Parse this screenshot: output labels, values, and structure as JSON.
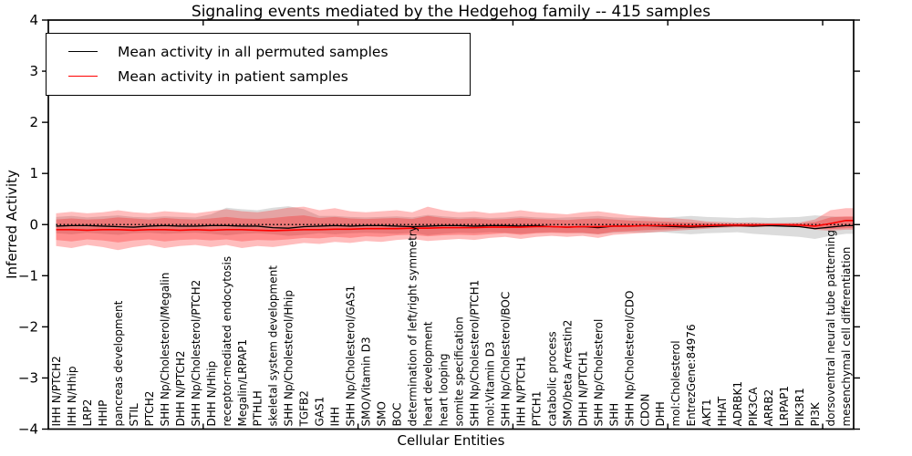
{
  "chart_data": {
    "type": "line",
    "title": "Signaling events mediated by the Hedgehog family -- 415 samples",
    "xlabel": "Cellular Entities",
    "ylabel": "Inferred Activity",
    "ylim": [
      -4,
      4
    ],
    "xlim": [
      0,
      52
    ],
    "yticks": [
      4,
      3,
      2,
      1,
      0,
      -1,
      -2,
      -3,
      -4
    ],
    "ytick_labels": [
      "4",
      "3",
      "2",
      "1",
      "0",
      "−1",
      "−2",
      "−3",
      "−4"
    ],
    "xticks": [
      10,
      20,
      30,
      40,
      50
    ],
    "grid": false,
    "legend_position": "upper left",
    "categories": [
      "IHH N/PTCH2",
      "IHH N/Hhip",
      "LRP2",
      "HHIP",
      "pancreas development",
      "STIL",
      "PTCH2",
      "SHH Np/Cholesterol/Megalin",
      "DHH N/PTCH2",
      "SHH Np/Cholesterol/PTCH2",
      "DHH N/Hhip",
      "receptor-mediated endocytosis",
      "Megalin/LRPAP1",
      "PTHLH",
      "skeletal system development",
      "SHH Np/Cholesterol/Hhip",
      "TGFB2",
      "GAS1",
      "IHH",
      "SHH Np/Cholesterol/GAS1",
      "SMO/Vitamin D3",
      "SMO",
      "BOC",
      "determination of left/right symmetry",
      "heart development",
      "heart looping",
      "somite specification",
      "SHH Np/Cholesterol/PTCH1",
      "mol:Vitamin D3",
      "SHH Np/Cholesterol/BOC",
      "IHH N/PTCH1",
      "PTCH1",
      "catabolic process",
      "SMO/beta Arrestin2",
      "DHH N/PTCH1",
      "SHH Np/Cholesterol",
      "SHH",
      "SHH Np/Cholesterol/CDO",
      "CDON",
      "DHH",
      "mol:Cholesterol",
      "EntrezGene:84976",
      "AKT1",
      "HHAT",
      "ADRBK1",
      "PIK3CA",
      "ARRB2",
      "LRPAP1",
      "PIK3R1",
      "PI3K",
      "dorsoventral neural tube patterning",
      "mesenchymal cell differentiation"
    ],
    "reference_line": {
      "y": 0,
      "style": "dotted",
      "color": "#000000"
    },
    "series": [
      {
        "name": "Mean activity in all permuted samples",
        "color": "#000000",
        "style": "solid",
        "values": [
          -0.03,
          -0.02,
          -0.02,
          -0.03,
          -0.04,
          -0.05,
          -0.03,
          -0.02,
          -0.03,
          -0.03,
          -0.02,
          -0.02,
          -0.03,
          -0.03,
          -0.06,
          -0.07,
          -0.04,
          -0.03,
          -0.02,
          -0.03,
          -0.02,
          -0.02,
          -0.03,
          -0.04,
          -0.03,
          -0.02,
          -0.02,
          -0.03,
          -0.02,
          -0.02,
          -0.03,
          -0.02,
          -0.04,
          -0.05,
          -0.04,
          -0.06,
          -0.03,
          -0.03,
          -0.02,
          -0.03,
          -0.04,
          -0.05,
          -0.04,
          -0.03,
          -0.02,
          -0.03,
          -0.02,
          -0.03,
          -0.04,
          -0.08,
          -0.05,
          -0.02
        ]
      },
      {
        "name": "Mean activity in patient samples",
        "color": "#ff0000",
        "style": "solid",
        "values": [
          -0.1,
          -0.1,
          -0.11,
          -0.1,
          -0.1,
          -0.11,
          -0.1,
          -0.1,
          -0.11,
          -0.1,
          -0.11,
          -0.1,
          -0.1,
          -0.11,
          -0.12,
          -0.11,
          -0.1,
          -0.1,
          -0.09,
          -0.09,
          -0.08,
          -0.08,
          -0.08,
          -0.07,
          -0.07,
          -0.06,
          -0.06,
          -0.06,
          -0.05,
          -0.05,
          -0.05,
          -0.04,
          -0.04,
          -0.05,
          -0.04,
          -0.04,
          -0.03,
          -0.03,
          -0.02,
          -0.02,
          -0.02,
          -0.03,
          -0.02,
          -0.01,
          -0.01,
          -0.01,
          0.0,
          0.0,
          -0.01,
          -0.03,
          0.02,
          0.08
        ]
      }
    ],
    "bands": [
      {
        "name": "permuted samples range",
        "color": "rgba(128,128,128,0.28)",
        "upper": [
          0.15,
          0.17,
          0.14,
          0.16,
          0.18,
          0.15,
          0.14,
          0.16,
          0.15,
          0.14,
          0.2,
          0.33,
          0.3,
          0.28,
          0.33,
          0.36,
          0.3,
          0.17,
          0.17,
          0.15,
          0.14,
          0.15,
          0.16,
          0.14,
          0.19,
          0.16,
          0.14,
          0.15,
          0.13,
          0.14,
          0.16,
          0.14,
          0.13,
          0.14,
          0.15,
          0.17,
          0.14,
          0.13,
          0.14,
          0.13,
          0.15,
          0.17,
          0.15,
          0.14,
          0.13,
          0.14,
          0.13,
          0.14,
          0.15,
          0.18,
          0.16,
          0.15
        ],
        "lower": [
          -0.17,
          -0.19,
          -0.16,
          -0.18,
          -0.2,
          -0.17,
          -0.16,
          -0.18,
          -0.17,
          -0.16,
          -0.18,
          -0.21,
          -0.18,
          -0.17,
          -0.19,
          -0.22,
          -0.2,
          -0.17,
          -0.19,
          -0.17,
          -0.16,
          -0.17,
          -0.18,
          -0.16,
          -0.21,
          -0.18,
          -0.16,
          -0.17,
          -0.15,
          -0.16,
          -0.18,
          -0.16,
          -0.15,
          -0.16,
          -0.17,
          -0.19,
          -0.16,
          -0.15,
          -0.16,
          -0.15,
          -0.17,
          -0.19,
          -0.17,
          -0.16,
          -0.15,
          -0.18,
          -0.2,
          -0.22,
          -0.24,
          -0.28,
          -0.22,
          -0.18
        ]
      },
      {
        "name": "patient samples range outer",
        "color": "rgba(255,0,0,0.26)",
        "upper": [
          0.22,
          0.25,
          0.22,
          0.24,
          0.28,
          0.24,
          0.22,
          0.26,
          0.24,
          0.22,
          0.26,
          0.3,
          0.26,
          0.24,
          0.28,
          0.33,
          0.35,
          0.28,
          0.32,
          0.26,
          0.24,
          0.26,
          0.28,
          0.24,
          0.35,
          0.28,
          0.24,
          0.26,
          0.22,
          0.24,
          0.28,
          0.24,
          0.22,
          0.2,
          0.24,
          0.26,
          0.22,
          0.18,
          0.16,
          0.14,
          0.12,
          0.1,
          0.06,
          0.05,
          0.04,
          0.04,
          0.03,
          0.03,
          0.04,
          0.1,
          0.28,
          0.32
        ],
        "lower": [
          -0.42,
          -0.46,
          -0.4,
          -0.44,
          -0.5,
          -0.44,
          -0.4,
          -0.46,
          -0.42,
          -0.4,
          -0.44,
          -0.4,
          -0.46,
          -0.42,
          -0.44,
          -0.4,
          -0.36,
          -0.38,
          -0.34,
          -0.36,
          -0.32,
          -0.34,
          -0.3,
          -0.28,
          -0.32,
          -0.3,
          -0.28,
          -0.3,
          -0.26,
          -0.24,
          -0.28,
          -0.24,
          -0.22,
          -0.24,
          -0.22,
          -0.26,
          -0.2,
          -0.18,
          -0.16,
          -0.14,
          -0.12,
          -0.1,
          -0.08,
          -0.06,
          -0.05,
          -0.05,
          -0.04,
          -0.04,
          -0.05,
          -0.1,
          -0.12,
          -0.1
        ]
      },
      {
        "name": "patient samples range inner",
        "color": "rgba(255,0,0,0.26)",
        "upper": [
          0.1,
          0.12,
          0.1,
          0.11,
          0.14,
          0.12,
          0.1,
          0.13,
          0.11,
          0.1,
          0.12,
          0.15,
          0.12,
          0.11,
          0.13,
          0.16,
          0.18,
          0.13,
          0.15,
          0.12,
          0.11,
          0.12,
          0.13,
          0.11,
          0.17,
          0.13,
          0.11,
          0.12,
          0.1,
          0.11,
          0.13,
          0.11,
          0.1,
          0.09,
          0.11,
          0.12,
          0.1,
          0.08,
          0.07,
          0.06,
          0.05,
          0.04,
          0.03,
          0.02,
          0.02,
          0.02,
          0.01,
          0.01,
          0.02,
          0.05,
          0.14,
          0.16
        ],
        "lower": [
          -0.3,
          -0.33,
          -0.29,
          -0.31,
          -0.35,
          -0.31,
          -0.29,
          -0.33,
          -0.3,
          -0.29,
          -0.31,
          -0.29,
          -0.33,
          -0.3,
          -0.31,
          -0.29,
          -0.26,
          -0.27,
          -0.24,
          -0.26,
          -0.23,
          -0.24,
          -0.21,
          -0.2,
          -0.23,
          -0.21,
          -0.2,
          -0.21,
          -0.19,
          -0.17,
          -0.2,
          -0.17,
          -0.16,
          -0.17,
          -0.16,
          -0.19,
          -0.14,
          -0.13,
          -0.11,
          -0.1,
          -0.09,
          -0.07,
          -0.06,
          -0.04,
          -0.04,
          -0.04,
          -0.03,
          -0.03,
          -0.04,
          -0.07,
          -0.09,
          -0.07
        ]
      }
    ]
  }
}
